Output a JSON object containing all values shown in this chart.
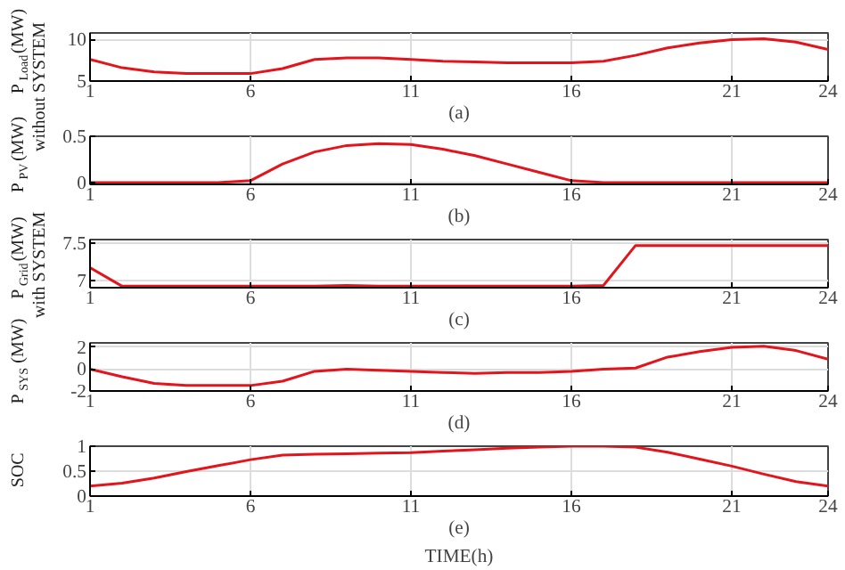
{
  "chart_data": [
    {
      "type": "line",
      "xlabel": "(a)",
      "ylabel": "P$_{Load}$(MW)\nwithout SYSTEM",
      "x": [
        1,
        2,
        3,
        4,
        5,
        6,
        7,
        8,
        9,
        10,
        11,
        12,
        13,
        14,
        15,
        16,
        17,
        18,
        19,
        20,
        21,
        22,
        23,
        24
      ],
      "xlim": [
        1,
        24
      ],
      "xticks": [
        1,
        6,
        11,
        16,
        21,
        24
      ],
      "ylim": [
        5,
        10.8
      ],
      "yticks": [
        5,
        10
      ],
      "grid": true,
      "series": [
        {
          "color": "#e3141b",
          "values": [
            7.6,
            6.6,
            6.1,
            5.9,
            5.9,
            5.9,
            6.5,
            7.6,
            7.8,
            7.8,
            7.6,
            7.4,
            7.3,
            7.2,
            7.2,
            7.2,
            7.4,
            8.1,
            9.0,
            9.6,
            10.0,
            10.1,
            9.7,
            8.8
          ]
        }
      ]
    },
    {
      "type": "line",
      "xlabel": "(b)",
      "ylabel": "P$_{PV}$(MW)",
      "x": [
        1,
        2,
        3,
        4,
        5,
        6,
        7,
        8,
        9,
        10,
        11,
        12,
        13,
        14,
        15,
        16,
        17,
        18,
        19,
        20,
        21,
        22,
        23,
        24
      ],
      "xlim": [
        1,
        24
      ],
      "xticks": [
        1,
        6,
        11,
        16,
        21,
        24
      ],
      "ylim": [
        -0.02,
        0.5
      ],
      "yticks": [
        0,
        0.5
      ],
      "grid": true,
      "series": [
        {
          "color": "#e3141b",
          "values": [
            0,
            0,
            0,
            0,
            0,
            0.02,
            0.2,
            0.33,
            0.4,
            0.42,
            0.41,
            0.36,
            0.29,
            0.2,
            0.11,
            0.02,
            0,
            0,
            0,
            0,
            0,
            0,
            0,
            0
          ]
        }
      ]
    },
    {
      "type": "line",
      "xlabel": "(c)",
      "ylabel": "P$_{Grid}$(MW)\nwith SYSTEM",
      "x": [
        1,
        2,
        3,
        4,
        5,
        6,
        7,
        8,
        9,
        10,
        11,
        12,
        13,
        14,
        15,
        16,
        17,
        18,
        19,
        20,
        21,
        22,
        23,
        24
      ],
      "xlim": [
        1,
        24
      ],
      "xticks": [
        1,
        6,
        11,
        16,
        21,
        24
      ],
      "ylim": [
        6.9,
        7.55
      ],
      "yticks": [
        7,
        7.5
      ],
      "grid": true,
      "series": [
        {
          "color": "#e3141b",
          "values": [
            7.17,
            6.92,
            6.92,
            6.92,
            6.92,
            6.92,
            6.92,
            6.92,
            6.93,
            6.92,
            6.92,
            6.92,
            6.92,
            6.92,
            6.92,
            6.92,
            6.93,
            7.47,
            7.47,
            7.47,
            7.47,
            7.47,
            7.47,
            7.47
          ]
        }
      ]
    },
    {
      "type": "line",
      "xlabel": "(d)",
      "ylabel": "P$_{SYS}$(MW)",
      "x": [
        1,
        2,
        3,
        4,
        5,
        6,
        7,
        8,
        9,
        10,
        11,
        12,
        13,
        14,
        15,
        16,
        17,
        18,
        19,
        20,
        21,
        22,
        23,
        24
      ],
      "xlim": [
        1,
        24
      ],
      "xticks": [
        1,
        6,
        11,
        16,
        21,
        24
      ],
      "ylim": [
        -2,
        2.4
      ],
      "yticks": [
        -2,
        0,
        2
      ],
      "grid": true,
      "series": [
        {
          "color": "#e3141b",
          "values": [
            0,
            -0.7,
            -1.3,
            -1.5,
            -1.5,
            -1.5,
            -1.1,
            -0.2,
            0,
            -0.1,
            -0.2,
            -0.3,
            -0.4,
            -0.3,
            -0.3,
            -0.2,
            0,
            0.1,
            1.1,
            1.6,
            2.0,
            2.1,
            1.7,
            0.9
          ]
        }
      ]
    },
    {
      "type": "line",
      "xlabel": "(e)",
      "ylabel": "SOC",
      "annotations": [
        "TIME(h)"
      ],
      "x": [
        1,
        2,
        3,
        4,
        5,
        6,
        7,
        8,
        9,
        10,
        11,
        12,
        13,
        14,
        15,
        16,
        17,
        18,
        19,
        20,
        21,
        22,
        23,
        24
      ],
      "xlim": [
        1,
        24
      ],
      "xticks": [
        1,
        6,
        11,
        16,
        21,
        24
      ],
      "ylim": [
        0,
        1
      ],
      "yticks": [
        0,
        0.5,
        1
      ],
      "grid": true,
      "series": [
        {
          "color": "#e3141b",
          "values": [
            0.2,
            0.26,
            0.36,
            0.49,
            0.61,
            0.73,
            0.82,
            0.84,
            0.85,
            0.86,
            0.87,
            0.9,
            0.93,
            0.96,
            0.98,
            1.0,
            1.0,
            0.98,
            0.88,
            0.74,
            0.6,
            0.44,
            0.29,
            0.2
          ]
        }
      ]
    }
  ]
}
